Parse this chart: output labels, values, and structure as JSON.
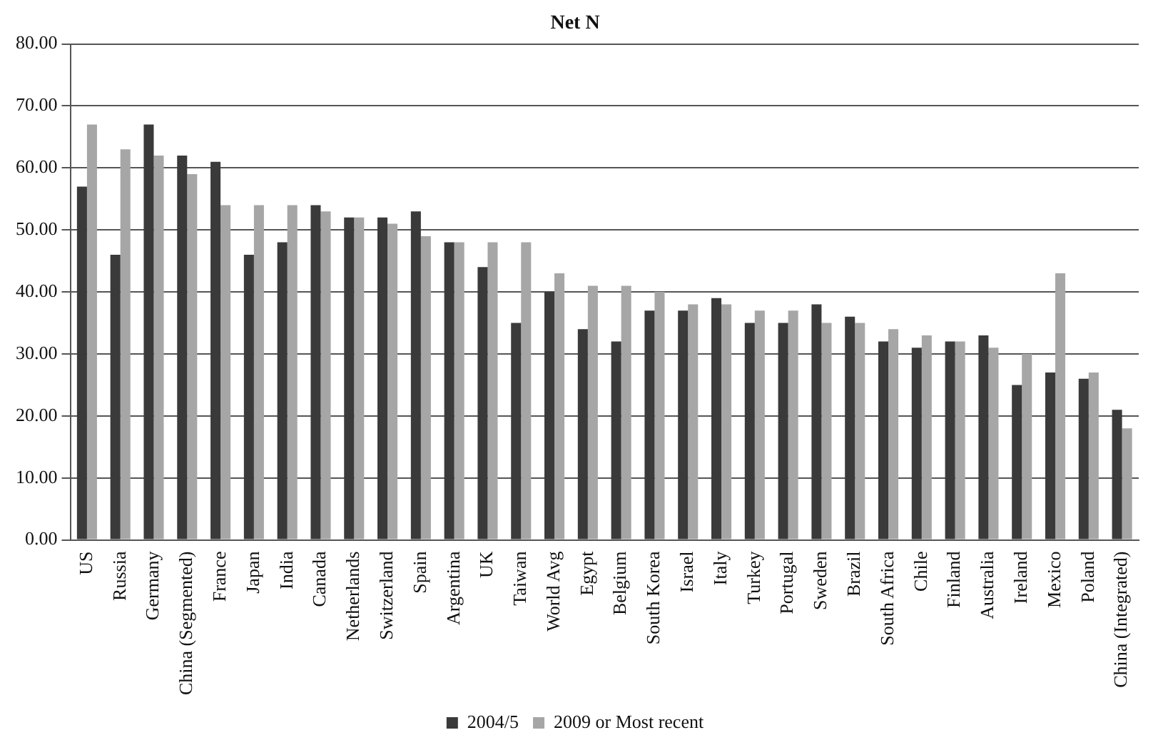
{
  "chart_data": {
    "type": "bar",
    "title": "Net N",
    "categories": [
      "US",
      "Russia",
      "Germany",
      "China (Segmented)",
      "France",
      "Japan",
      "India",
      "Canada",
      "Netherlands",
      "Switzerland",
      "Spain",
      "Argentina",
      "UK",
      "Taiwan",
      "World Avg",
      "Egypt",
      "Belgium",
      "South Korea",
      "Israel",
      "Italy",
      "Turkey",
      "Portugal",
      "Sweden",
      "Brazil",
      "South Africa",
      "Chile",
      "Finland",
      "Australia",
      "Ireland",
      "Mexico",
      "Poland",
      "China (Integrated)"
    ],
    "series": [
      {
        "name": "2004/5",
        "color": "#3a3a3a",
        "values": [
          57,
          46,
          67,
          62,
          61,
          46,
          48,
          54,
          52,
          52,
          53,
          48,
          44,
          35,
          40,
          34,
          32,
          37,
          37,
          39,
          35,
          35,
          38,
          36,
          32,
          31,
          32,
          33,
          25,
          27,
          26,
          21
        ]
      },
      {
        "name": "2009 or Most recent",
        "color": "#a6a6a6",
        "values": [
          67,
          63,
          62,
          59,
          54,
          54,
          54,
          53,
          52,
          51,
          49,
          48,
          48,
          48,
          43,
          41,
          41,
          40,
          38,
          38,
          37,
          37,
          35,
          35,
          34,
          33,
          32,
          31,
          30,
          43,
          27,
          18
        ]
      }
    ],
    "ylim": [
      0,
      80
    ],
    "yticks": [
      {
        "value": 0,
        "label": "0.00"
      },
      {
        "value": 10,
        "label": "10.00"
      },
      {
        "value": 20,
        "label": "20.00"
      },
      {
        "value": 30,
        "label": "30.00"
      },
      {
        "value": 40,
        "label": "40.00"
      },
      {
        "value": 50,
        "label": "50.00"
      },
      {
        "value": 60,
        "label": "60.00"
      },
      {
        "value": 70,
        "label": "70.00"
      },
      {
        "value": 80,
        "label": "80.00"
      }
    ],
    "grid": "y",
    "legend": "bottom"
  }
}
